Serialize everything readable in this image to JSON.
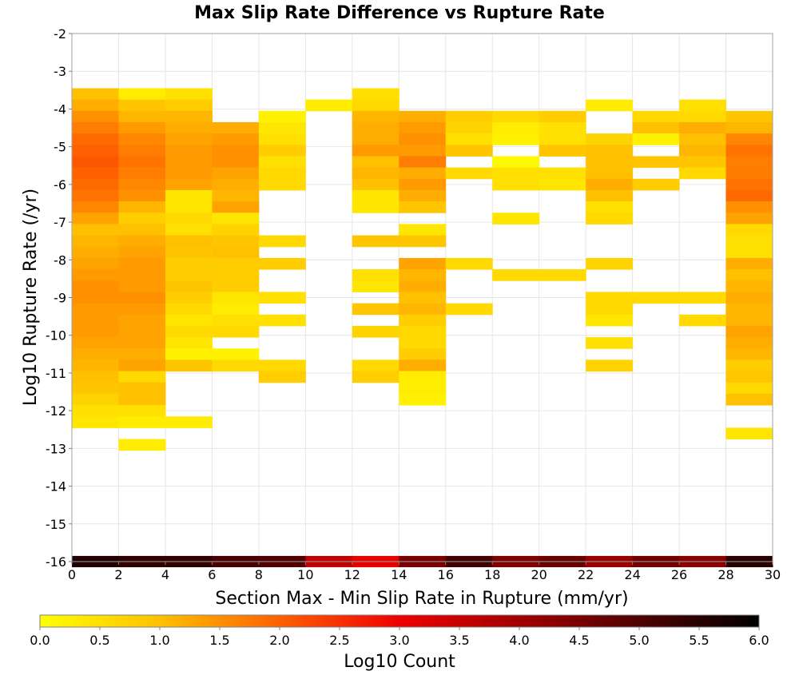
{
  "chart_data": {
    "type": "heatmap",
    "title": "Max Slip Rate Difference vs Rupture Rate",
    "xlabel": "Section Max - Min Slip Rate in Rupture (mm/yr)",
    "ylabel": "Log10 Rupture Rate (/yr)",
    "xlim": [
      0,
      30
    ],
    "ylim": [
      -16,
      -2
    ],
    "x_ticks": [
      "0",
      "2",
      "4",
      "6",
      "8",
      "10",
      "12",
      "14",
      "16",
      "18",
      "20",
      "22",
      "24",
      "26",
      "28",
      "30"
    ],
    "y_ticks": [
      "-2",
      "-3",
      "-4",
      "-5",
      "-6",
      "-7",
      "-8",
      "-9",
      "-10",
      "-11",
      "-12",
      "-13",
      "-14",
      "-15",
      "-16"
    ],
    "grid": true,
    "x_bin_width": 2,
    "y_bin_height": 0.3,
    "columns": [
      {
        "x0": 0,
        "bins": [
          [
            -3.6,
            1.0
          ],
          [
            -3.9,
            1.2
          ],
          [
            -4.2,
            1.5
          ],
          [
            -4.5,
            1.7
          ],
          [
            -4.8,
            1.9
          ],
          [
            -5.1,
            2.0
          ],
          [
            -5.4,
            2.1
          ],
          [
            -5.7,
            2.0
          ],
          [
            -6.0,
            1.9
          ],
          [
            -6.3,
            1.8
          ],
          [
            -6.6,
            1.6
          ],
          [
            -6.9,
            1.3
          ],
          [
            -7.2,
            1.0
          ],
          [
            -7.5,
            1.1
          ],
          [
            -7.8,
            1.2
          ],
          [
            -8.1,
            1.3
          ],
          [
            -8.4,
            1.4
          ],
          [
            -8.7,
            1.5
          ],
          [
            -9.0,
            1.5
          ],
          [
            -9.3,
            1.4
          ],
          [
            -9.6,
            1.4
          ],
          [
            -9.9,
            1.4
          ],
          [
            -10.2,
            1.3
          ],
          [
            -10.5,
            1.2
          ],
          [
            -10.8,
            1.1
          ],
          [
            -11.1,
            1.0
          ],
          [
            -11.4,
            0.9
          ],
          [
            -11.7,
            0.7
          ],
          [
            -12.0,
            0.5
          ],
          [
            -12.3,
            0.4
          ]
        ]
      },
      {
        "x0": 2,
        "bins": [
          [
            -3.6,
            0.3
          ],
          [
            -3.9,
            0.9
          ],
          [
            -4.2,
            1.1
          ],
          [
            -4.5,
            1.4
          ],
          [
            -4.8,
            1.6
          ],
          [
            -5.1,
            1.7
          ],
          [
            -5.4,
            1.8
          ],
          [
            -5.7,
            1.7
          ],
          [
            -6.0,
            1.6
          ],
          [
            -6.3,
            1.5
          ],
          [
            -6.6,
            1.1
          ],
          [
            -6.9,
            0.8
          ],
          [
            -7.2,
            1.0
          ],
          [
            -7.5,
            1.2
          ],
          [
            -7.8,
            1.3
          ],
          [
            -8.1,
            1.4
          ],
          [
            -8.4,
            1.4
          ],
          [
            -8.7,
            1.4
          ],
          [
            -9.0,
            1.5
          ],
          [
            -9.3,
            1.4
          ],
          [
            -9.6,
            1.3
          ],
          [
            -9.9,
            1.3
          ],
          [
            -10.2,
            1.3
          ],
          [
            -10.5,
            1.2
          ],
          [
            -10.8,
            1.3
          ],
          [
            -11.1,
            0.6
          ],
          [
            -11.4,
            1.0
          ],
          [
            -11.7,
            1.0
          ],
          [
            -12.0,
            0.5
          ],
          [
            -12.3,
            0.3
          ],
          [
            -12.9,
            0.3
          ]
        ]
      },
      {
        "x0": 4,
        "bins": [
          [
            -3.6,
            0.5
          ],
          [
            -3.9,
            0.8
          ],
          [
            -4.2,
            1.1
          ],
          [
            -4.5,
            1.2
          ],
          [
            -4.8,
            1.3
          ],
          [
            -5.1,
            1.4
          ],
          [
            -5.4,
            1.4
          ],
          [
            -5.7,
            1.4
          ],
          [
            -6.0,
            1.3
          ],
          [
            -6.3,
            0.4
          ],
          [
            -6.6,
            0.4
          ],
          [
            -6.9,
            0.6
          ],
          [
            -7.2,
            0.5
          ],
          [
            -7.5,
            1.0
          ],
          [
            -7.8,
            0.9
          ],
          [
            -8.1,
            0.8
          ],
          [
            -8.4,
            0.8
          ],
          [
            -8.7,
            0.9
          ],
          [
            -9.0,
            0.8
          ],
          [
            -9.3,
            0.6
          ],
          [
            -9.6,
            0.4
          ],
          [
            -9.9,
            0.6
          ],
          [
            -10.2,
            0.4
          ],
          [
            -10.5,
            0.2
          ],
          [
            -10.8,
            0.9
          ],
          [
            -12.3,
            0.3
          ]
        ]
      },
      {
        "x0": 6,
        "bins": [
          [
            -4.5,
            1.2
          ],
          [
            -4.8,
            1.4
          ],
          [
            -5.1,
            1.5
          ],
          [
            -5.4,
            1.5
          ],
          [
            -5.7,
            1.3
          ],
          [
            -6.0,
            1.2
          ],
          [
            -6.3,
            1.1
          ],
          [
            -6.6,
            1.3
          ],
          [
            -6.9,
            0.4
          ],
          [
            -7.2,
            0.7
          ],
          [
            -7.5,
            0.9
          ],
          [
            -7.8,
            1.0
          ],
          [
            -8.1,
            0.8
          ],
          [
            -8.4,
            0.8
          ],
          [
            -8.7,
            0.8
          ],
          [
            -9.0,
            0.4
          ],
          [
            -9.3,
            0.3
          ],
          [
            -9.6,
            0.5
          ],
          [
            -9.9,
            0.6
          ],
          [
            -10.5,
            0.2
          ],
          [
            -10.8,
            0.6
          ]
        ]
      },
      {
        "x0": 8,
        "bins": [
          [
            -4.2,
            0.2
          ],
          [
            -4.5,
            0.4
          ],
          [
            -4.8,
            0.5
          ],
          [
            -5.1,
            0.8
          ],
          [
            -5.4,
            0.5
          ],
          [
            -5.7,
            0.6
          ],
          [
            -6.0,
            0.6
          ],
          [
            -7.5,
            0.6
          ],
          [
            -8.1,
            0.8
          ],
          [
            -9.0,
            0.5
          ],
          [
            -9.6,
            0.5
          ],
          [
            -10.8,
            0.6
          ],
          [
            -11.1,
            0.8
          ]
        ]
      },
      {
        "x0": 10,
        "bins": [
          [
            -3.9,
            0.3
          ]
        ]
      },
      {
        "x0": 12,
        "bins": [
          [
            -3.6,
            0.5
          ],
          [
            -3.9,
            0.6
          ],
          [
            -4.2,
            1.1
          ],
          [
            -4.5,
            1.2
          ],
          [
            -4.8,
            1.2
          ],
          [
            -5.1,
            1.4
          ],
          [
            -5.4,
            1.0
          ],
          [
            -5.7,
            1.1
          ],
          [
            -6.0,
            1.0
          ],
          [
            -6.3,
            0.4
          ],
          [
            -6.6,
            0.4
          ],
          [
            -7.5,
            0.9
          ],
          [
            -8.4,
            0.5
          ],
          [
            -8.7,
            0.4
          ],
          [
            -9.3,
            0.9
          ],
          [
            -9.9,
            0.7
          ],
          [
            -10.8,
            0.6
          ],
          [
            -11.1,
            0.8
          ]
        ]
      },
      {
        "x0": 14,
        "bins": [
          [
            -4.2,
            1.2
          ],
          [
            -4.5,
            1.4
          ],
          [
            -4.8,
            1.5
          ],
          [
            -5.1,
            1.4
          ],
          [
            -5.4,
            1.7
          ],
          [
            -5.7,
            1.2
          ],
          [
            -6.0,
            1.4
          ],
          [
            -6.3,
            1.2
          ],
          [
            -6.6,
            0.9
          ],
          [
            -7.2,
            0.4
          ],
          [
            -7.5,
            0.9
          ],
          [
            -8.1,
            1.3
          ],
          [
            -8.4,
            1.1
          ],
          [
            -8.7,
            1.2
          ],
          [
            -9.0,
            1.0
          ],
          [
            -9.3,
            1.1
          ],
          [
            -9.6,
            0.8
          ],
          [
            -9.9,
            0.6
          ],
          [
            -10.2,
            0.6
          ],
          [
            -10.5,
            0.8
          ],
          [
            -10.8,
            1.2
          ],
          [
            -11.1,
            0.3
          ],
          [
            -11.4,
            0.3
          ],
          [
            -11.7,
            0.2
          ]
        ]
      },
      {
        "x0": 16,
        "bins": [
          [
            -4.2,
            0.8
          ],
          [
            -4.5,
            0.7
          ],
          [
            -4.8,
            0.5
          ],
          [
            -5.1,
            0.9
          ],
          [
            -5.7,
            0.6
          ],
          [
            -8.1,
            0.6
          ],
          [
            -9.3,
            0.6
          ]
        ]
      },
      {
        "x0": 18,
        "bins": [
          [
            -4.2,
            0.6
          ],
          [
            -4.5,
            0.3
          ],
          [
            -4.8,
            0.2
          ],
          [
            -5.4,
            0.1
          ],
          [
            -5.7,
            0.5
          ],
          [
            -6.0,
            0.5
          ],
          [
            -6.9,
            0.4
          ],
          [
            -8.4,
            0.6
          ]
        ]
      },
      {
        "x0": 20,
        "bins": [
          [
            -4.2,
            0.8
          ],
          [
            -4.5,
            0.5
          ],
          [
            -4.8,
            0.5
          ],
          [
            -5.1,
            0.9
          ],
          [
            -5.7,
            0.5
          ],
          [
            -6.0,
            0.4
          ],
          [
            -8.4,
            0.6
          ]
        ]
      },
      {
        "x0": 22,
        "bins": [
          [
            -3.9,
            0.3
          ],
          [
            -4.8,
            0.7
          ],
          [
            -5.1,
            1.0
          ],
          [
            -5.4,
            1.0
          ],
          [
            -5.7,
            1.0
          ],
          [
            -6.0,
            1.2
          ],
          [
            -6.3,
            1.0
          ],
          [
            -6.6,
            0.5
          ],
          [
            -6.9,
            0.6
          ],
          [
            -8.1,
            0.7
          ],
          [
            -9.0,
            0.6
          ],
          [
            -9.3,
            0.6
          ],
          [
            -9.6,
            0.4
          ],
          [
            -10.2,
            0.5
          ],
          [
            -10.8,
            0.7
          ]
        ]
      },
      {
        "x0": 24,
        "bins": [
          [
            -4.2,
            0.6
          ],
          [
            -4.5,
            1.0
          ],
          [
            -4.8,
            0.2
          ],
          [
            -5.4,
            0.9
          ],
          [
            -6.0,
            0.8
          ],
          [
            -9.0,
            0.6
          ]
        ]
      },
      {
        "x0": 26,
        "bins": [
          [
            -3.9,
            0.5
          ],
          [
            -4.2,
            0.6
          ],
          [
            -4.5,
            1.2
          ],
          [
            -4.8,
            1.0
          ],
          [
            -5.1,
            1.1
          ],
          [
            -5.4,
            0.9
          ],
          [
            -5.7,
            0.6
          ],
          [
            -9.0,
            0.6
          ],
          [
            -9.6,
            0.6
          ]
        ]
      },
      {
        "x0": 28,
        "bins": [
          [
            -4.2,
            0.9
          ],
          [
            -4.5,
            1.1
          ],
          [
            -4.8,
            1.6
          ],
          [
            -5.1,
            1.8
          ],
          [
            -5.4,
            1.7
          ],
          [
            -5.7,
            1.7
          ],
          [
            -6.0,
            1.8
          ],
          [
            -6.3,
            1.9
          ],
          [
            -6.6,
            1.5
          ],
          [
            -6.9,
            1.3
          ],
          [
            -7.2,
            0.6
          ],
          [
            -7.5,
            0.5
          ],
          [
            -7.8,
            0.5
          ],
          [
            -8.1,
            1.2
          ],
          [
            -8.4,
            1.0
          ],
          [
            -8.7,
            1.1
          ],
          [
            -9.0,
            1.2
          ],
          [
            -9.3,
            1.1
          ],
          [
            -9.6,
            1.1
          ],
          [
            -9.9,
            1.3
          ],
          [
            -10.2,
            1.2
          ],
          [
            -10.5,
            1.1
          ],
          [
            -10.8,
            0.8
          ],
          [
            -11.1,
            0.9
          ],
          [
            -11.4,
            0.6
          ],
          [
            -11.7,
            1.0
          ],
          [
            -12.6,
            0.4
          ]
        ]
      }
    ],
    "bottom_row": {
      "y": -16,
      "values": [
        5.6,
        5.4,
        5.4,
        5.1,
        5.0,
        3.6,
        3.1,
        4.5,
        5.2,
        4.4,
        4.7,
        4.1,
        4.6,
        4.3,
        5.5
      ]
    },
    "colorbar": {
      "label": "Log10 Count",
      "range": [
        0,
        6
      ],
      "ticks": [
        "0.0",
        "0.5",
        "1.0",
        "1.5",
        "2.0",
        "2.5",
        "3.0",
        "3.5",
        "4.0",
        "4.5",
        "5.0",
        "5.5",
        "6.0"
      ],
      "stops": [
        {
          "v": 0.0,
          "color": "#ffff00"
        },
        {
          "v": 1.0,
          "color": "#ffc000"
        },
        {
          "v": 2.0,
          "color": "#ff6000"
        },
        {
          "v": 3.0,
          "color": "#ee0000"
        },
        {
          "v": 4.0,
          "color": "#a00000"
        },
        {
          "v": 5.0,
          "color": "#500000"
        },
        {
          "v": 6.0,
          "color": "#000000"
        }
      ]
    }
  }
}
